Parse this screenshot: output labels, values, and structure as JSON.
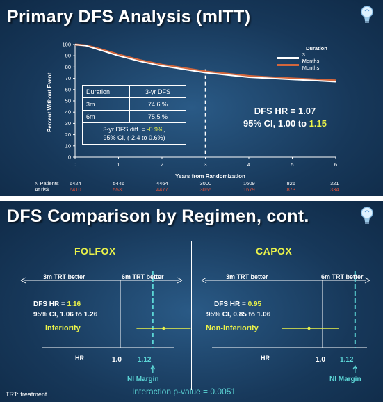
{
  "slide1": {
    "title": "Primary DFS Analysis (mITT)",
    "chart_data": {
      "type": "line",
      "ylabel": "Percent Without Event",
      "xlabel": "Years from Randomization",
      "xlim": [
        0,
        6
      ],
      "ylim": [
        0,
        100
      ],
      "x_ticks": [
        0,
        1,
        2,
        3,
        4,
        5,
        6
      ],
      "y_ticks": [
        0,
        10,
        20,
        30,
        40,
        50,
        60,
        70,
        80,
        90,
        100
      ],
      "legend_title": "Duration",
      "legend_position": "top-right",
      "series": [
        {
          "name": "3 Months",
          "color": "#ffffff",
          "x": [
            0,
            0.25,
            0.5,
            1,
            1.5,
            2,
            2.5,
            3,
            3.5,
            4,
            4.5,
            5,
            5.5,
            6
          ],
          "values": [
            100,
            99,
            96,
            90,
            85,
            81,
            78,
            75,
            73,
            71,
            70,
            69,
            68,
            67
          ]
        },
        {
          "name": "6 Months",
          "color": "#d2663c",
          "x": [
            0,
            0.25,
            0.5,
            1,
            1.5,
            2,
            2.5,
            3,
            3.5,
            4,
            4.5,
            5,
            5.5,
            6
          ],
          "values": [
            100,
            99.2,
            96.8,
            91,
            86,
            82,
            79,
            76,
            74,
            72,
            70.8,
            69.8,
            69,
            68
          ]
        }
      ],
      "reference_line_x": 3
    },
    "table": {
      "header": [
        "Duration",
        "3-yr DFS"
      ],
      "rows": [
        [
          "3m",
          "74.6 %"
        ],
        [
          "6m",
          "75.5 %"
        ]
      ],
      "diff_label": "3-yr DFS diff. = ",
      "diff_value": "-0.9%",
      "diff_suffix": ",",
      "diff_ci": "95% CI, (-2.4 to 0.6%)"
    },
    "hr_line1": "DFS HR = 1.07",
    "hr_line2_prefix": "95% CI, 1.00 to ",
    "hr_line2_value": "1.15",
    "at_risk": {
      "label1": "N Patients",
      "label2": "At risk",
      "three_months": [
        "6424",
        "5446",
        "4464",
        "3000",
        "1609",
        "826",
        "321"
      ],
      "six_months": [
        "6410",
        "5530",
        "4477",
        "3065",
        "1679",
        "873",
        "334"
      ]
    },
    "colors": {
      "three_months": "#ffffff",
      "six_months": "#d2663c",
      "highlight": "#eaf24a"
    }
  },
  "slide2": {
    "title": "DFS Comparison by Regimen, cont.",
    "footer_note": "TRT: treatment",
    "interaction": "Interaction p-value = 0.0051",
    "panels": [
      {
        "head": "FOLFOX",
        "left_label": "3m TRT better",
        "right_label": "6m TRT better",
        "hr_prefix": "DFS HR = ",
        "hr_value": "1.16",
        "hr": 1.16,
        "ci_text": "95% CI, 1.06 to 1.26",
        "ci_low": 1.06,
        "ci_high": 1.26,
        "verdict": "Inferiority",
        "axis_label": "HR",
        "ref_label": "1.0",
        "margin_label": "1.12",
        "margin_caption": "NI Margin"
      },
      {
        "head": "CAPOX",
        "left_label": "3m TRT better",
        "right_label": "6m TRT better",
        "hr_prefix": "DFS HR = ",
        "hr_value": "0.95",
        "hr": 0.95,
        "ci_text": "95% CI, 0.85 to 1.06",
        "ci_low": 0.85,
        "ci_high": 1.06,
        "verdict": "Non-Inferiority",
        "axis_label": "HR",
        "ref_label": "1.0",
        "margin_label": "1.12",
        "margin_caption": "NI Margin"
      }
    ],
    "colors": {
      "margin": "#5cd6d6",
      "ci": "#eaf24a"
    }
  },
  "icons": [
    "lightbulb-icon"
  ]
}
